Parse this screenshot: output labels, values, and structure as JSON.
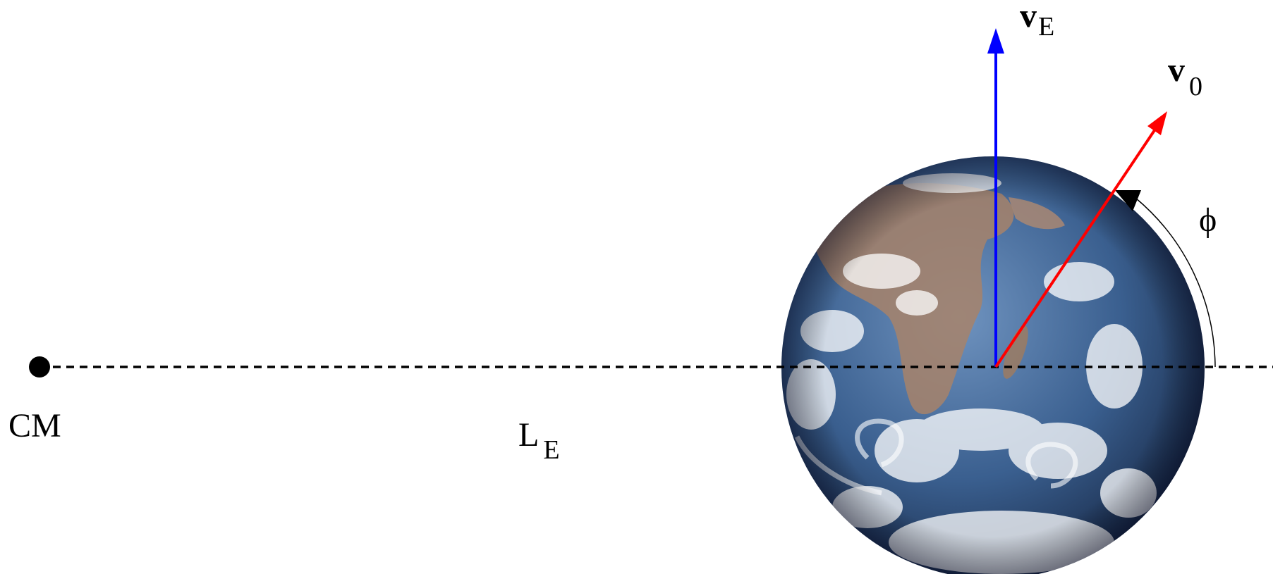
{
  "labels": {
    "cm": "CM",
    "length": {
      "main": "L",
      "sub": "E"
    },
    "earth_velocity": {
      "main": "v",
      "sub": "E"
    },
    "launch_velocity": {
      "main": "v",
      "sub": "0"
    },
    "angle": "ϕ"
  },
  "colors": {
    "earth_velocity_arrow": "#0000ff",
    "launch_velocity_arrow": "#ff0000",
    "dashed_axis": "#000000",
    "angle_arc": "#000000"
  },
  "icons": {
    "center_of_mass": "filled-dot",
    "earth": "earth-globe"
  }
}
